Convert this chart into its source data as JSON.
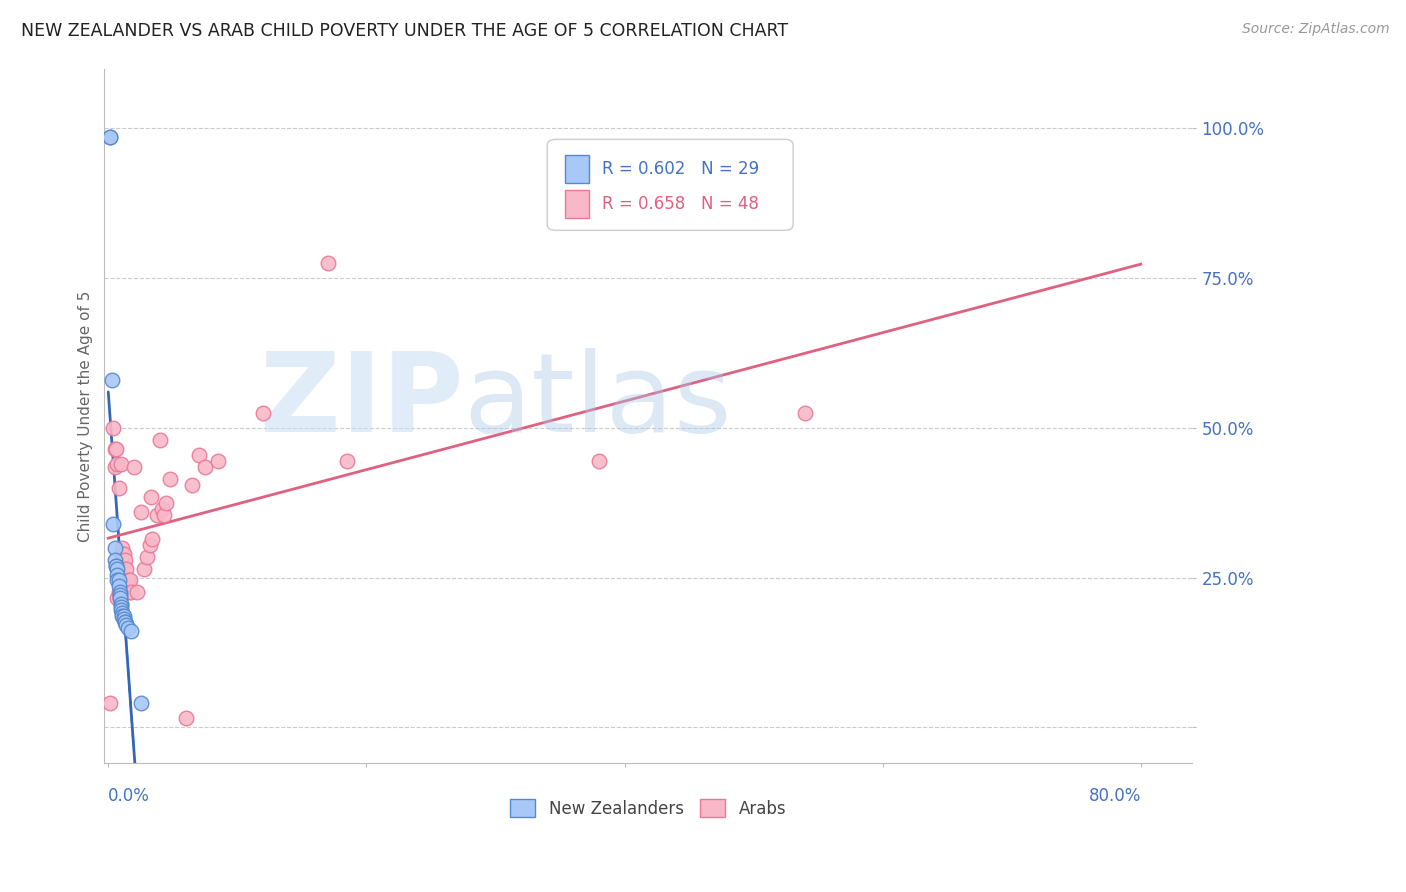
{
  "title": "NEW ZEALANDER VS ARAB CHILD POVERTY UNDER THE AGE OF 5 CORRELATION CHART",
  "source": "Source: ZipAtlas.com",
  "ylabel": "Child Poverty Under the Age of 5",
  "legend1_r": "0.602",
  "legend1_n": "29",
  "legend2_r": "0.658",
  "legend2_n": "48",
  "nz_color": "#a8c8f8",
  "arab_color": "#f8b8c8",
  "nz_edge_color": "#5588cc",
  "arab_edge_color": "#e87898",
  "nz_line_color": "#3366bb",
  "arab_line_color": "#e06080",
  "watermark_zip": "ZIP",
  "watermark_atlas": "atlas",
  "xlim": [
    -0.003,
    0.84
  ],
  "ylim": [
    -0.06,
    1.1
  ],
  "ytick_positions": [
    0.0,
    0.25,
    0.5,
    0.75,
    1.0
  ],
  "ytick_labels": [
    "",
    "25.0%",
    "50.0%",
    "75.0%",
    "100.0%"
  ],
  "xtick_left_label": "0.0%",
  "xtick_right_label": "80.0%",
  "xtick_right_x": 0.8,
  "background_color": "#ffffff",
  "grid_color": "#cccccc",
  "nz_scatter_x": [
    0.001,
    0.001,
    0.003,
    0.004,
    0.005,
    0.005,
    0.006,
    0.006,
    0.007,
    0.007,
    0.007,
    0.008,
    0.008,
    0.009,
    0.009,
    0.009,
    0.01,
    0.01,
    0.01,
    0.011,
    0.011,
    0.012,
    0.012,
    0.013,
    0.013,
    0.014,
    0.015,
    0.018,
    0.025
  ],
  "nz_scatter_y": [
    0.985,
    0.985,
    0.58,
    0.34,
    0.3,
    0.28,
    0.27,
    0.27,
    0.265,
    0.255,
    0.245,
    0.245,
    0.235,
    0.225,
    0.22,
    0.215,
    0.205,
    0.2,
    0.195,
    0.19,
    0.185,
    0.185,
    0.18,
    0.175,
    0.175,
    0.17,
    0.165,
    0.16,
    0.04
  ],
  "arab_scatter_x": [
    0.001,
    0.004,
    0.005,
    0.005,
    0.006,
    0.007,
    0.007,
    0.008,
    0.008,
    0.009,
    0.009,
    0.01,
    0.01,
    0.011,
    0.011,
    0.011,
    0.012,
    0.013,
    0.013,
    0.014,
    0.015,
    0.016,
    0.017,
    0.018,
    0.02,
    0.022,
    0.025,
    0.028,
    0.03,
    0.032,
    0.033,
    0.034,
    0.038,
    0.04,
    0.042,
    0.043,
    0.045,
    0.048,
    0.06,
    0.065,
    0.07,
    0.075,
    0.085,
    0.12,
    0.17,
    0.185,
    0.38,
    0.54
  ],
  "arab_scatter_y": [
    0.04,
    0.5,
    0.465,
    0.435,
    0.465,
    0.215,
    0.44,
    0.4,
    0.225,
    0.22,
    0.215,
    0.205,
    0.44,
    0.3,
    0.29,
    0.28,
    0.29,
    0.265,
    0.28,
    0.265,
    0.245,
    0.225,
    0.245,
    0.225,
    0.435,
    0.225,
    0.36,
    0.265,
    0.285,
    0.305,
    0.385,
    0.315,
    0.355,
    0.48,
    0.365,
    0.355,
    0.375,
    0.415,
    0.015,
    0.405,
    0.455,
    0.435,
    0.445,
    0.525,
    0.775,
    0.445,
    0.445,
    0.525
  ]
}
